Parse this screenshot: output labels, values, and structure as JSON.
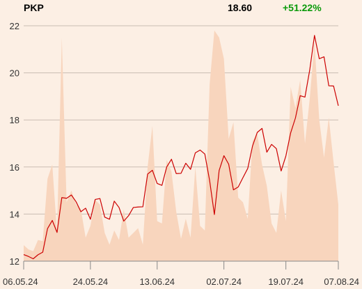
{
  "header": {
    "ticker": "PKP",
    "price": "18.60",
    "change": "+51.22%"
  },
  "colors": {
    "background": "#fcefe4",
    "line": "#cc0000",
    "volume_fill": "#f8d5bd",
    "grid": "#c9bdb2",
    "change_positive": "#0a9a0a"
  },
  "chart_data": {
    "type": "line",
    "title": "",
    "xlabel": "",
    "ylabel": "",
    "ylim": [
      12,
      22
    ],
    "y_ticks": [
      12,
      14,
      16,
      18,
      20,
      22
    ],
    "x_ticks": [
      {
        "i": 0,
        "label": "06.05.24"
      },
      {
        "i": 14,
        "label": "24.05.24"
      },
      {
        "i": 28,
        "label": "13.06.24"
      },
      {
        "i": 42,
        "label": "02.07.24"
      },
      {
        "i": 55,
        "label": "19.07.24"
      },
      {
        "i": 66,
        "label": "07.08.24"
      }
    ],
    "n_points": 67,
    "grid": true,
    "series": [
      {
        "kind": "line",
        "values": [
          12.28,
          12.2,
          12.1,
          12.27,
          12.38,
          13.38,
          13.73,
          13.22,
          14.7,
          14.67,
          14.81,
          14.52,
          14.1,
          14.25,
          13.78,
          14.62,
          14.66,
          13.87,
          13.78,
          14.55,
          14.28,
          13.7,
          13.93,
          14.28,
          14.3,
          14.31,
          15.7,
          15.86,
          15.3,
          15.22,
          16.0,
          16.33,
          15.72,
          15.73,
          16.16,
          15.9,
          16.6,
          16.72,
          16.55,
          15.43,
          13.98,
          15.85,
          16.48,
          16.12,
          15.03,
          15.15,
          15.55,
          15.94,
          16.89,
          17.47,
          17.64,
          16.63,
          16.96,
          16.78,
          15.83,
          16.47,
          17.45,
          18.08,
          19.03,
          18.97,
          20.12,
          21.59,
          20.6,
          20.68,
          19.45,
          19.44,
          18.6
        ]
      },
      {
        "kind": "area",
        "values": [
          12.68,
          12.5,
          12.42,
          12.9,
          12.85,
          15.5,
          16.1,
          13.2,
          21.5,
          14.5,
          15.0,
          14.4,
          14.2,
          13.0,
          13.5,
          14.6,
          14.4,
          13.2,
          12.7,
          13.3,
          12.9,
          14.2,
          13.0,
          13.2,
          13.4,
          12.7,
          16.0,
          17.75,
          13.7,
          13.6,
          16.3,
          15.8,
          14.1,
          12.95,
          13.8,
          13.0,
          16.0,
          13.5,
          13.3,
          19.5,
          21.8,
          21.5,
          20.6,
          17.2,
          17.9,
          14.7,
          14.5,
          13.8,
          17.1,
          17.4,
          16.1,
          15.2,
          13.6,
          13.2,
          15.0,
          13.7,
          19.4,
          18.5,
          19.7,
          17.0,
          18.9,
          21.3,
          18.0,
          16.4,
          18.1,
          16.2,
          14.4
        ]
      }
    ]
  }
}
